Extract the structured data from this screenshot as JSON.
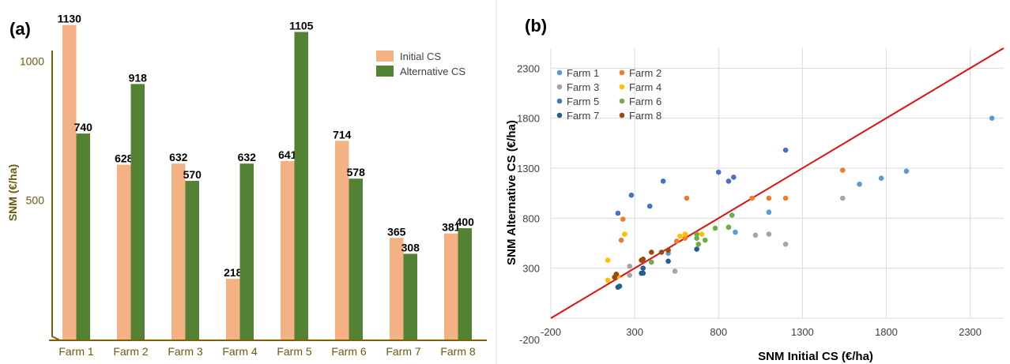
{
  "chart_data": [
    {
      "panel_label": "(a)",
      "type": "bar",
      "categories": [
        "Farm 1",
        "Farm 2",
        "Farm 3",
        "Farm 4",
        "Farm 5",
        "Farm 6",
        "Farm 7",
        "Farm 8"
      ],
      "series": [
        {
          "name": "Initial CS",
          "color": "#f4b183",
          "values": [
            1130,
            628,
            632,
            218,
            641,
            714,
            365,
            381
          ]
        },
        {
          "name": "Alternative CS",
          "color": "#548235",
          "values": [
            740,
            918,
            570,
            632,
            1105,
            578,
            308,
            400
          ]
        }
      ],
      "ylabel": "SNM (€/ha)",
      "yticks": [
        500,
        1000
      ],
      "ylim": [
        0,
        1180
      ],
      "legend_position": "top-right",
      "data_labels": true,
      "grid": false
    },
    {
      "panel_label": "(b)",
      "type": "scatter",
      "xlabel": "SNM Initial CS (€/ha)",
      "ylabel": "SNM Alternative CS (€/ha)",
      "xlim": [
        -200,
        2500
      ],
      "ylim": [
        -200,
        2500
      ],
      "xticks": [
        -200,
        300,
        800,
        1300,
        1800,
        2300
      ],
      "yticks": [
        -200,
        300,
        800,
        1300,
        1800,
        2300
      ],
      "grid": true,
      "legend_position": "top-left",
      "reference_line": {
        "type": "y=x",
        "color": "#e01010"
      },
      "series": [
        {
          "name": "Farm 1",
          "color": "#5b9bd5",
          "points": [
            [
              2430,
              1800
            ],
            [
              1920,
              1270
            ],
            [
              1770,
              1200
            ],
            [
              1640,
              1140
            ],
            [
              1100,
              860
            ],
            [
              900,
              660
            ],
            [
              500,
              450
            ]
          ]
        },
        {
          "name": "Farm 2",
          "color": "#ed7d31",
          "points": [
            [
              1540,
              1280
            ],
            [
              1200,
              1000
            ],
            [
              1100,
              1000
            ],
            [
              1000,
              1000
            ],
            [
              610,
              1000
            ],
            [
              230,
              790
            ],
            [
              220,
              580
            ],
            [
              550,
              570
            ],
            [
              600,
              600
            ]
          ]
        },
        {
          "name": "Farm 3",
          "color": "#a5a5a5",
          "points": [
            [
              1540,
              1000
            ],
            [
              1100,
              640
            ],
            [
              1020,
              630
            ],
            [
              1200,
              540
            ],
            [
              540,
              270
            ],
            [
              270,
              320
            ],
            [
              270,
              230
            ]
          ]
        },
        {
          "name": "Farm 4",
          "color": "#ffc000",
          "points": [
            [
              140,
              380
            ],
            [
              140,
              180
            ],
            [
              200,
              220
            ],
            [
              240,
              640
            ],
            [
              570,
              620
            ],
            [
              600,
              640
            ],
            [
              700,
              640
            ]
          ]
        },
        {
          "name": "Farm 5",
          "color": "#4472c4",
          "points": [
            [
              1200,
              1480
            ],
            [
              890,
              1210
            ],
            [
              860,
              1170
            ],
            [
              800,
              1260
            ],
            [
              470,
              1170
            ],
            [
              280,
              1030
            ],
            [
              390,
              920
            ],
            [
              200,
              850
            ]
          ]
        },
        {
          "name": "Farm 6",
          "color": "#70ad47",
          "points": [
            [
              880,
              830
            ],
            [
              860,
              710
            ],
            [
              780,
              700
            ],
            [
              720,
              580
            ],
            [
              680,
              540
            ],
            [
              670,
              600
            ],
            [
              670,
              640
            ],
            [
              400,
              360
            ]
          ]
        },
        {
          "name": "Farm 7",
          "color": "#255e91",
          "points": [
            [
              500,
              370
            ],
            [
              670,
              490
            ],
            [
              340,
              250
            ],
            [
              350,
              250
            ],
            [
              350,
              300
            ],
            [
              210,
              120
            ],
            [
              200,
              110
            ]
          ]
        },
        {
          "name": "Farm 8",
          "color": "#9e480e",
          "points": [
            [
              180,
              210
            ],
            [
              190,
              240
            ],
            [
              340,
              380
            ],
            [
              350,
              390
            ],
            [
              400,
              460
            ],
            [
              460,
              460
            ],
            [
              500,
              480
            ]
          ]
        }
      ]
    }
  ]
}
